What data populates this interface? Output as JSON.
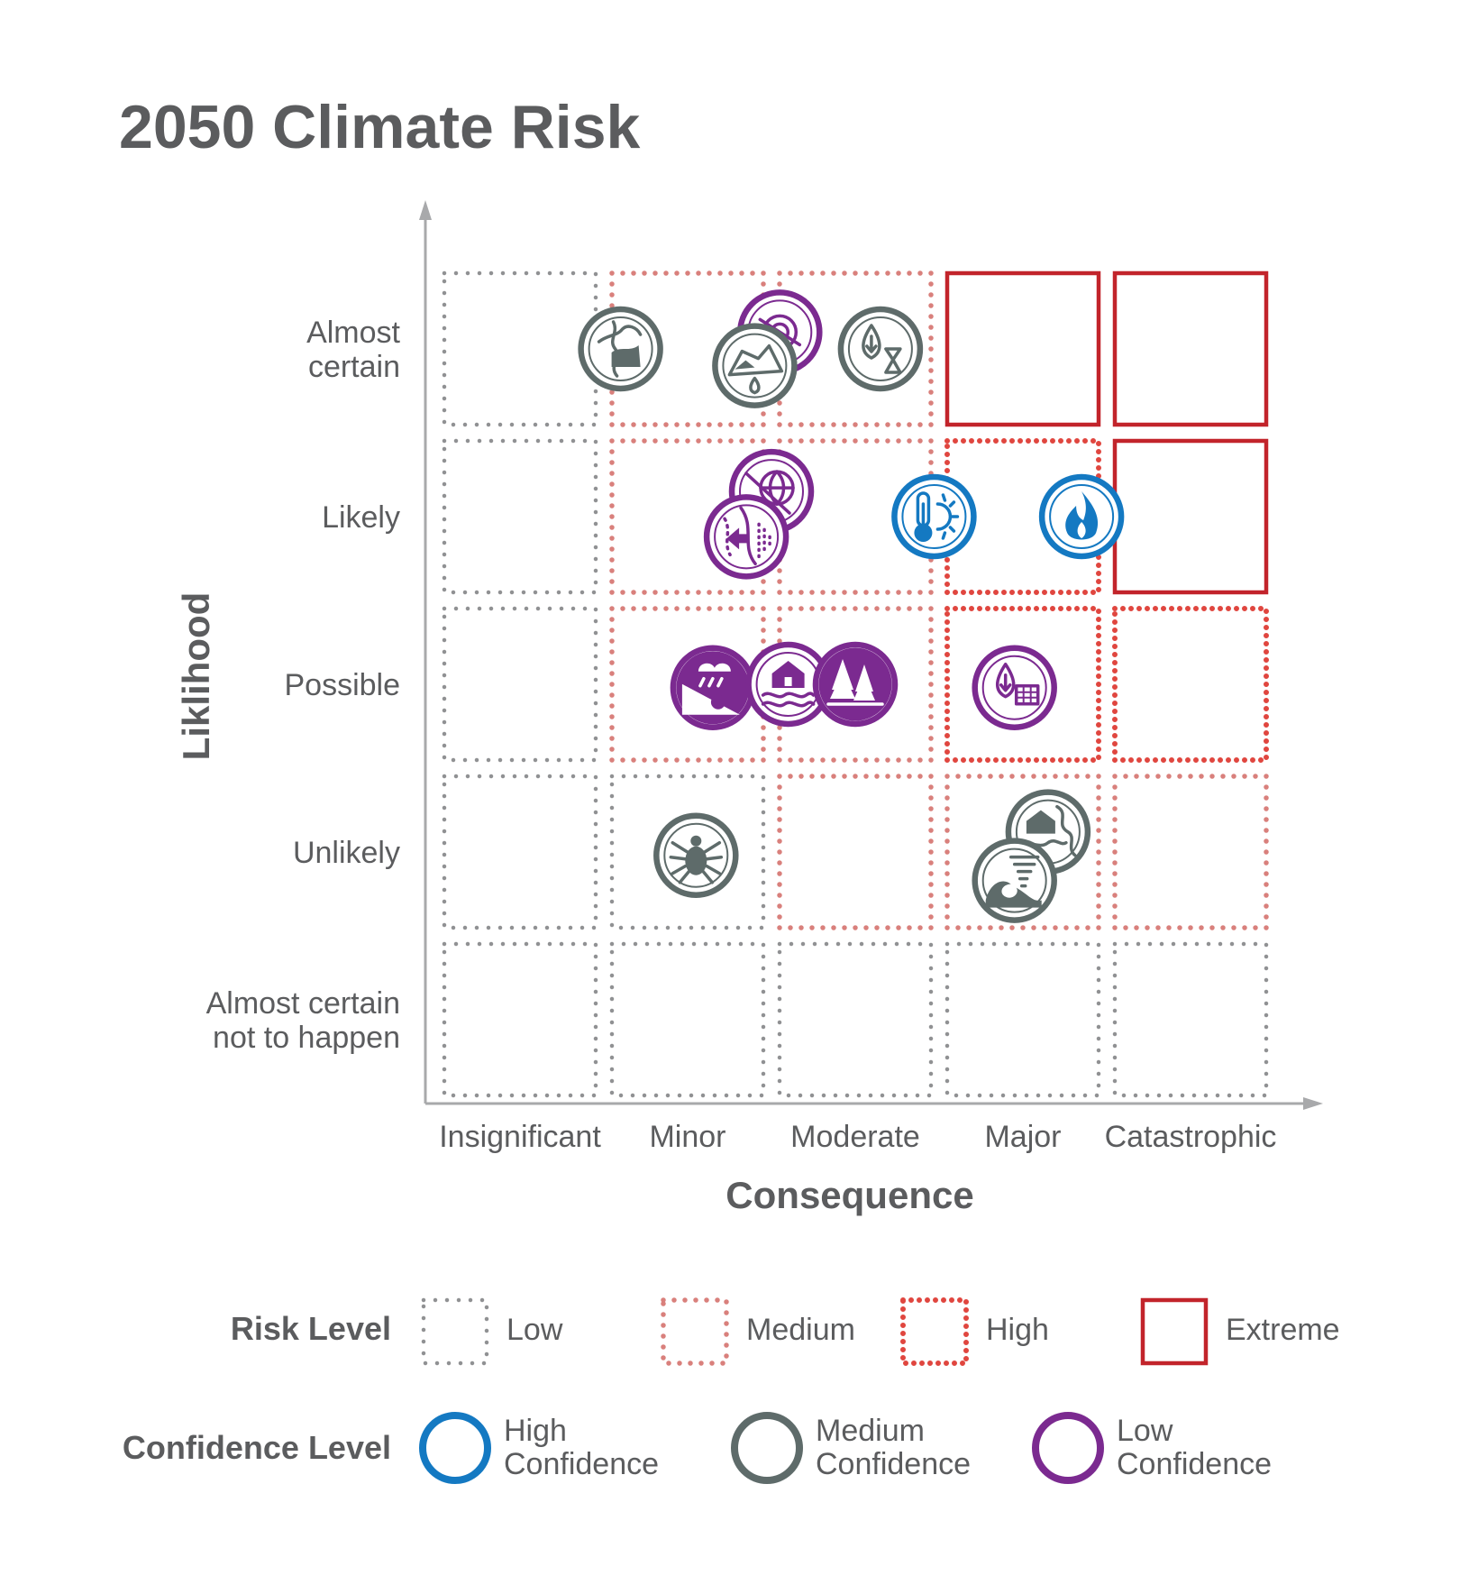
{
  "chart_data": {
    "type": "scatter",
    "title": "2050 Climate Risk",
    "xlabel": "Consequence",
    "ylabel": "Liklihood",
    "x_categories": [
      "Insignificant",
      "Minor",
      "Moderate",
      "Major",
      "Catastrophic"
    ],
    "y_categories": [
      [
        "Almost",
        "certain"
      ],
      [
        "Likely"
      ],
      [
        "Possible"
      ],
      [
        "Unlikely"
      ],
      [
        "Almost certain",
        "not to happen"
      ]
    ],
    "risk_grid": [
      [
        "low",
        "medium",
        "medium",
        "extreme",
        "extreme"
      ],
      [
        "low",
        "medium",
        "medium",
        "high",
        "extreme"
      ],
      [
        "low",
        "medium",
        "medium",
        "high",
        "high"
      ],
      [
        "low",
        "low",
        "medium",
        "medium",
        "medium"
      ],
      [
        "low",
        "low",
        "low",
        "low",
        "low"
      ]
    ],
    "risk_colors": {
      "low": "#909193",
      "medium": "#d9807c",
      "high": "#e0463f",
      "extreme": "#c2242b"
    },
    "confidence_colors": {
      "high": "#1479c2",
      "medium": "#5e6b6a",
      "low": "#7b2a90"
    },
    "points": [
      {
        "icon": "sea-level-rise-icon",
        "x": 1.1,
        "y": 4.0,
        "confidence": "medium"
      },
      {
        "icon": "ocean-acidification-icon",
        "x": 2.05,
        "y": 4.1,
        "confidence": "low"
      },
      {
        "icon": "glacier-melt-icon",
        "x": 1.9,
        "y": 3.9,
        "confidence": "medium"
      },
      {
        "icon": "drought-icon",
        "x": 2.65,
        "y": 4.0,
        "confidence": "medium"
      },
      {
        "icon": "global-change-icon",
        "x": 2.0,
        "y": 3.15,
        "confidence": "low"
      },
      {
        "icon": "species-migration-icon",
        "x": 1.85,
        "y": 2.88,
        "confidence": "low"
      },
      {
        "icon": "extreme-heat-icon",
        "x": 2.97,
        "y": 3.0,
        "confidence": "high"
      },
      {
        "icon": "wildfire-icon",
        "x": 3.85,
        "y": 3.0,
        "confidence": "high"
      },
      {
        "icon": "landslide-icon",
        "x": 1.65,
        "y": 1.98,
        "confidence": "low"
      },
      {
        "icon": "flooding-icon",
        "x": 2.1,
        "y": 2.0,
        "confidence": "low"
      },
      {
        "icon": "forest-change-icon",
        "x": 2.5,
        "y": 2.0,
        "confidence": "low"
      },
      {
        "icon": "water-supply-icon",
        "x": 3.45,
        "y": 1.98,
        "confidence": "low"
      },
      {
        "icon": "tick-disease-icon",
        "x": 1.55,
        "y": 0.98,
        "confidence": "medium"
      },
      {
        "icon": "coastal-erosion-icon",
        "x": 3.65,
        "y": 1.12,
        "confidence": "medium"
      },
      {
        "icon": "severe-storm-icon",
        "x": 3.45,
        "y": 0.83,
        "confidence": "medium"
      }
    ],
    "legend": {
      "risk_title": "Risk Level",
      "risk_items": [
        {
          "level": "low",
          "label": "Low"
        },
        {
          "level": "medium",
          "label": "Medium"
        },
        {
          "level": "high",
          "label": "High"
        },
        {
          "level": "extreme",
          "label": "Extreme"
        }
      ],
      "confidence_title": "Confidence Level",
      "confidence_items": [
        {
          "level": "high",
          "lines": [
            "High",
            "Confidence"
          ]
        },
        {
          "level": "medium",
          "lines": [
            "Medium",
            "Confidence"
          ]
        },
        {
          "level": "low",
          "lines": [
            "Low",
            "Confidence"
          ]
        }
      ]
    }
  }
}
